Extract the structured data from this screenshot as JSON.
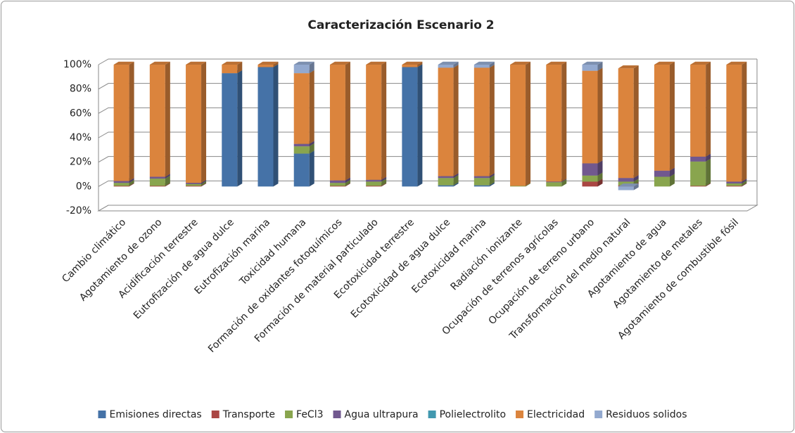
{
  "chart_data": {
    "type": "bar3d_stacked",
    "title": "Caracterización Escenario 2",
    "categories": [
      "Cambio climático",
      "Agotamiento de ozono",
      "Acidificación terrestre",
      "Eutrofización de agua dulce",
      "Eutrofización marina",
      "Toxicidad humana",
      "Formación de oxidantes fotoquímicos",
      "Formación de material particulado",
      "Ecotoxicidad terrestre",
      "Ecotoxicidad de agua dulce",
      "Ecotoxicidad marina",
      "Radiación ionizante",
      "Ocupación de terrenos agrícolas",
      "Ocupación de terreno urbano",
      "Transformación del medio natural",
      "Agotamiento de agua",
      "Agotamiento de metales",
      "Agotamiento de combustible fósil"
    ],
    "series": [
      {
        "name": "Emisiones directas",
        "color": "#4572a7",
        "values": [
          0,
          0,
          0,
          93,
          98,
          27,
          0,
          0,
          98,
          1,
          1,
          0,
          0,
          0,
          0,
          0,
          0,
          0
        ]
      },
      {
        "name": "Transporte",
        "color": "#aa4643",
        "values": [
          0.5,
          0.5,
          0.5,
          0,
          0,
          0,
          0.5,
          0.5,
          0,
          0,
          0,
          0,
          0,
          4,
          1,
          0,
          0.5,
          0.5
        ]
      },
      {
        "name": "FeCl3",
        "color": "#89a54e",
        "values": [
          2.5,
          6,
          1.5,
          0,
          0,
          6,
          2.5,
          3.5,
          0,
          6,
          6,
          0.5,
          3.5,
          5,
          3,
          8,
          20,
          2
        ]
      },
      {
        "name": "Agua ultrapura",
        "color": "#71588f",
        "values": [
          1.5,
          1.5,
          1,
          0,
          0,
          2,
          2,
          1.5,
          0,
          1.5,
          1.5,
          0,
          0.5,
          10,
          3,
          5,
          4,
          1.5
        ]
      },
      {
        "name": "Polielectrolito",
        "color": "#4198af",
        "values": [
          0,
          0,
          0,
          0,
          0,
          0,
          0,
          0,
          0,
          0,
          0,
          0,
          0,
          0,
          0,
          0,
          0,
          0
        ]
      },
      {
        "name": "Electricidad",
        "color": "#db843d",
        "values": [
          95.5,
          92,
          97,
          7,
          2,
          58,
          95,
          94.5,
          2,
          89,
          89,
          99.5,
          96,
          76,
          90,
          87,
          75.5,
          96
        ]
      },
      {
        "name": "Residuos solidos",
        "color": "#93a9cf",
        "values": [
          0,
          0,
          0,
          0,
          0,
          7,
          0,
          0,
          0,
          2.5,
          2.5,
          0,
          0,
          5,
          -3,
          0,
          0,
          0
        ]
      }
    ],
    "ylim": [
      -20,
      100
    ],
    "yticks": [
      {
        "value": -20,
        "label": "-20%"
      },
      {
        "value": 0,
        "label": "0%"
      },
      {
        "value": 20,
        "label": "20%"
      },
      {
        "value": 40,
        "label": "40%"
      },
      {
        "value": 60,
        "label": "60%"
      },
      {
        "value": 80,
        "label": "80%"
      },
      {
        "value": 100,
        "label": "100%"
      }
    ],
    "grid": true,
    "legend": "bottom"
  }
}
